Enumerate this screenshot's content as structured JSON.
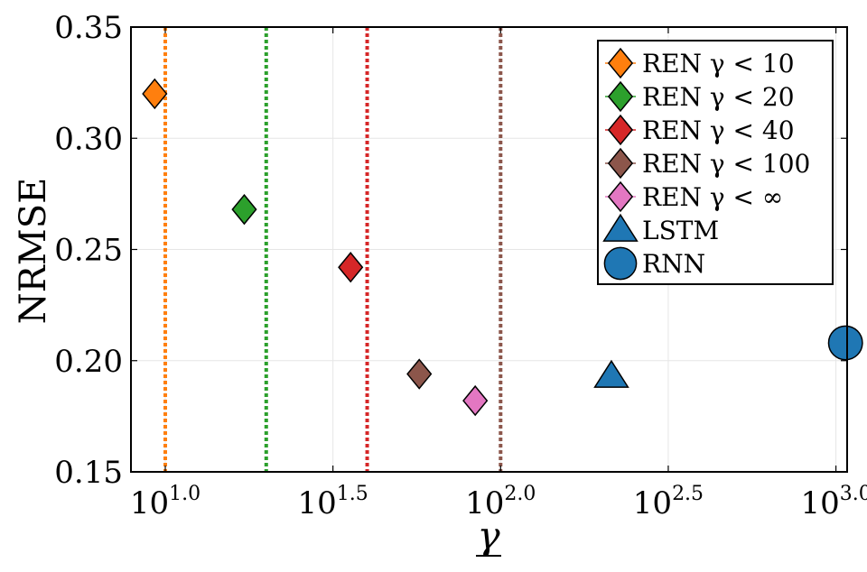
{
  "chart_data": {
    "type": "scatter",
    "title": "",
    "xlabel": "γ",
    "ylabel": "NRMSE",
    "xscale": "log10",
    "xlim": [
      7.9,
      1080
    ],
    "ylim": [
      0.15,
      0.35
    ],
    "x_ticks": [
      10,
      31.6228,
      100,
      316.228,
      1000
    ],
    "x_tick_labels": [
      {
        "base": "10",
        "exp": "1.0"
      },
      {
        "base": "10",
        "exp": "1.5"
      },
      {
        "base": "10",
        "exp": "2.0"
      },
      {
        "base": "10",
        "exp": "2.5"
      },
      {
        "base": "10",
        "exp": "3.0"
      }
    ],
    "y_ticks": [
      0.15,
      0.2,
      0.25,
      0.3,
      0.35
    ],
    "y_tick_labels": [
      "0.15",
      "0.20",
      "0.25",
      "0.30",
      "0.35"
    ],
    "grid": true,
    "legend_position": "top-right",
    "bounds": [
      {
        "x": 10,
        "color": "#ff7f0e"
      },
      {
        "x": 20,
        "color": "#2ca02c"
      },
      {
        "x": 40,
        "color": "#d62728"
      },
      {
        "x": 100,
        "color": "#8c564b"
      }
    ],
    "series": [
      {
        "label": "REN γ < 10",
        "marker": "diamond",
        "color": "#ff7f0e",
        "x": 9.3,
        "y": 0.32
      },
      {
        "label": "REN γ < 20",
        "marker": "diamond",
        "color": "#2ca02c",
        "x": 17.2,
        "y": 0.268
      },
      {
        "label": "REN γ < 40",
        "marker": "diamond",
        "color": "#d62728",
        "x": 35.7,
        "y": 0.242
      },
      {
        "label": "REN γ < 100",
        "marker": "diamond",
        "color": "#8c564b",
        "x": 57.2,
        "y": 0.194
      },
      {
        "label": "REN γ < ∞",
        "marker": "diamond",
        "color": "#e377c2",
        "x": 84.0,
        "y": 0.182
      },
      {
        "label": "LSTM",
        "marker": "triangle",
        "color": "#1f77b4",
        "x": 214,
        "y": 0.193
      },
      {
        "label": "RNN",
        "marker": "circle",
        "color": "#1f77b4",
        "x": 1068,
        "y": 0.208
      }
    ]
  }
}
